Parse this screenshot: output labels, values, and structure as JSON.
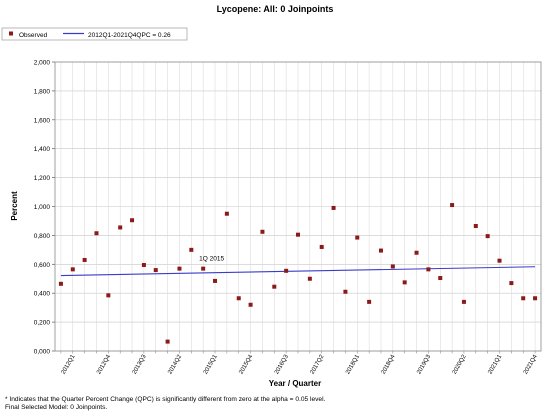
{
  "chart_data": {
    "type": "scatter",
    "title": "Lycopene: All: 0 Joinpoints",
    "xlabel": "Year / Quarter",
    "ylabel": "Percent",
    "ylim": [
      0,
      2
    ],
    "yticks": [
      0,
      0.2,
      0.4,
      0.6,
      0.8,
      1.0,
      1.2,
      1.4,
      1.6,
      1.8,
      2.0
    ],
    "ytick_labels": [
      "0,000",
      "0,200",
      "0,400",
      "0,600",
      "0,800",
      "1,000",
      "1,200",
      "1,400",
      "1,600",
      "1,800",
      "2,000"
    ],
    "grid": true,
    "legend_position": "top-left",
    "x_tick_labels": [
      {
        "index": 1,
        "label": "2012Q1"
      },
      {
        "index": 4,
        "label": "2012Q4"
      },
      {
        "index": 7,
        "label": "2013Q3"
      },
      {
        "index": 10,
        "label": "2014Q2"
      },
      {
        "index": 13,
        "label": "2015Q1"
      },
      {
        "index": 16,
        "label": "2015Q4"
      },
      {
        "index": 19,
        "label": "2016Q3"
      },
      {
        "index": 22,
        "label": "2017Q2"
      },
      {
        "index": 25,
        "label": "2018Q1"
      },
      {
        "index": 28,
        "label": "2018Q4"
      },
      {
        "index": 31,
        "label": "2019Q3"
      },
      {
        "index": 34,
        "label": "2020Q2"
      },
      {
        "index": 37,
        "label": "2021Q1"
      },
      {
        "index": 40,
        "label": "2021Q4"
      }
    ],
    "series": [
      {
        "name": "Observed",
        "kind": "points",
        "color": "#8b1a1a",
        "x": [
          0,
          1,
          2,
          3,
          4,
          5,
          6,
          7,
          8,
          9,
          10,
          11,
          12,
          13,
          14,
          15,
          16,
          17,
          18,
          19,
          20,
          21,
          22,
          23,
          24,
          25,
          26,
          27,
          28,
          29,
          30,
          31,
          32,
          33,
          34,
          35,
          36,
          37,
          38,
          39,
          40
        ],
        "values": [
          0.465,
          0.565,
          0.63,
          0.815,
          0.385,
          0.855,
          0.905,
          0.595,
          0.56,
          0.065,
          0.57,
          0.7,
          0.57,
          0.485,
          0.95,
          0.365,
          0.32,
          0.825,
          0.445,
          0.555,
          0.805,
          0.5,
          0.72,
          0.99,
          0.41,
          0.785,
          0.34,
          0.695,
          0.585,
          0.475,
          0.68,
          0.565,
          0.505,
          1.01,
          0.34,
          0.865,
          0.795,
          0.625,
          0.47,
          0.365,
          0.365
        ]
      },
      {
        "name": "2012Q1-2021Q4QPC = 0.26",
        "kind": "trend",
        "color": "#3b3bcc",
        "x": [
          0,
          40
        ],
        "values": [
          0.522,
          0.583
        ]
      }
    ],
    "annotations": [
      {
        "text": "1Q 2015",
        "x": 12,
        "y": 0.62
      }
    ]
  },
  "footnotes": {
    "line1": "* Indicates that the Quarter Percent Change (QPC) is significantly different from zero at the alpha = 0.05 level.",
    "line2": "Final Selected Model: 0 Joinpoints."
  }
}
